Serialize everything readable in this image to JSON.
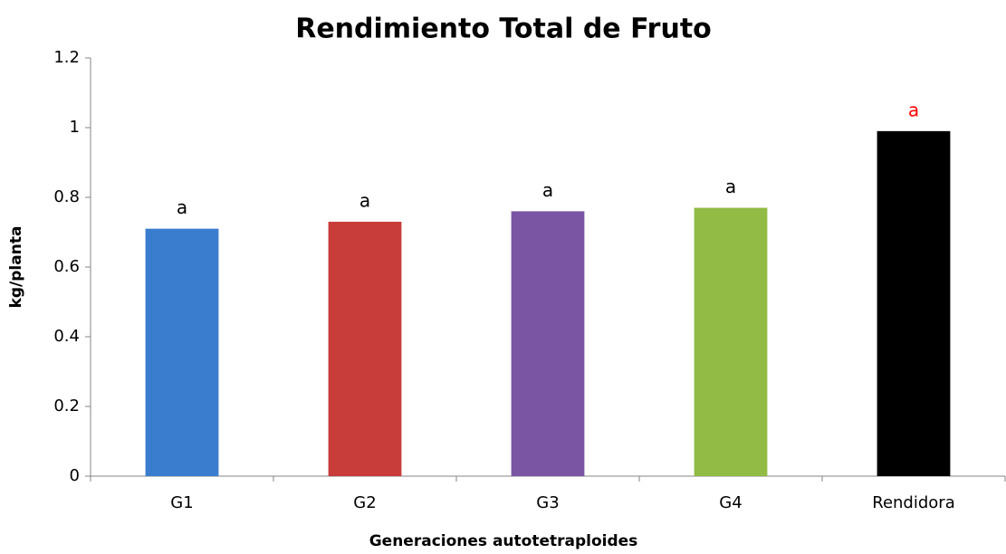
{
  "chart_data": {
    "type": "bar",
    "title": "Rendimiento Total de Fruto",
    "xlabel": "Generaciones autotetraploides",
    "ylabel": "kg/planta",
    "categories": [
      "G1",
      "G2",
      "G3",
      "G4",
      "Rendidora"
    ],
    "values": [
      0.71,
      0.73,
      0.76,
      0.77,
      0.99
    ],
    "colors": [
      "#3a7dce",
      "#c83c3a",
      "#7a55a3",
      "#92bb45",
      "#000000"
    ],
    "annotations": [
      "a",
      "a",
      "a",
      "a",
      "a"
    ],
    "annotation_colors": [
      "#000000",
      "#000000",
      "#000000",
      "#000000",
      "#ff0000"
    ],
    "ylim": [
      0,
      1.2
    ],
    "yticks": [
      0,
      0.2,
      0.4,
      0.6,
      0.8,
      1,
      1.2
    ],
    "grid": false
  }
}
